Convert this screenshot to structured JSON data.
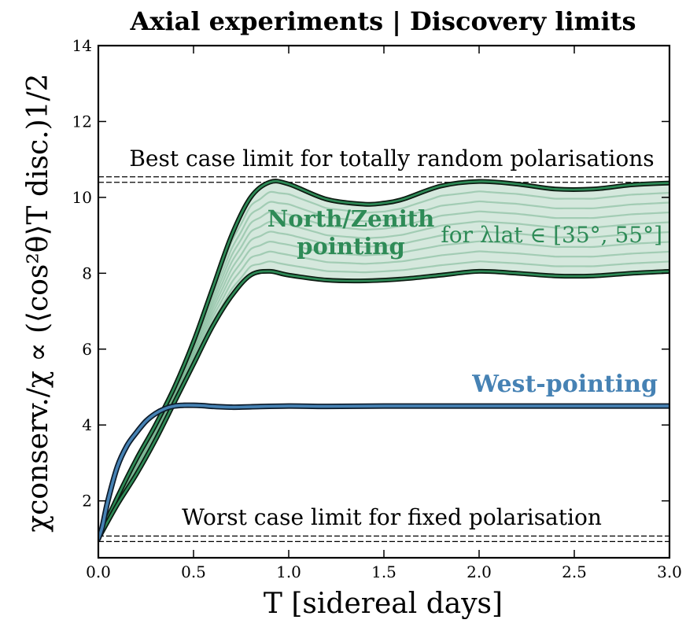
{
  "chart_data": {
    "type": "line",
    "title": "Axial experiments | Discovery limits",
    "xlabel": "T [sidereal days]",
    "ylabel": "χconserv./χ ∝ (⟨cos²θ⟩T disc.)1/2",
    "xlim": [
      0.0,
      3.0
    ],
    "ylim": [
      0.5,
      14
    ],
    "xticks": [
      "0.0",
      "0.5",
      "1.0",
      "1.5",
      "2.0",
      "2.5",
      "3.0"
    ],
    "yticks": [
      "2",
      "4",
      "6",
      "8",
      "10",
      "12",
      "14"
    ],
    "grid": false,
    "reference_lines": [
      {
        "label": "Best case limit for totally random polarisations",
        "y": 10.47
      },
      {
        "label": "Worst case limit for fixed polarisation",
        "y": 1.0
      }
    ],
    "band": {
      "label": "North/Zenith pointing",
      "sublabel": "for λlat ∈ [35°, 55°]",
      "color": "#2e8b57",
      "upper": {
        "x": [
          0.0,
          0.1,
          0.2,
          0.3,
          0.4,
          0.5,
          0.6,
          0.7,
          0.8,
          0.9,
          1.0,
          1.2,
          1.4,
          1.5,
          1.6,
          1.8,
          2.0,
          2.2,
          2.4,
          2.6,
          2.8,
          3.0
        ],
        "y": [
          1.0,
          2.1,
          3.1,
          4.0,
          5.0,
          6.2,
          7.6,
          9.0,
          10.0,
          10.4,
          10.35,
          9.95,
          9.82,
          9.85,
          9.95,
          10.3,
          10.42,
          10.35,
          10.22,
          10.22,
          10.33,
          10.38
        ]
      },
      "lower": {
        "x": [
          0.0,
          0.1,
          0.2,
          0.3,
          0.4,
          0.5,
          0.6,
          0.7,
          0.8,
          0.9,
          1.0,
          1.2,
          1.4,
          1.6,
          1.8,
          2.0,
          2.2,
          2.4,
          2.6,
          2.8,
          3.0
        ],
        "y": [
          1.0,
          1.9,
          2.7,
          3.6,
          4.6,
          5.6,
          6.6,
          7.4,
          7.95,
          8.05,
          7.95,
          7.82,
          7.8,
          7.85,
          7.95,
          8.05,
          8.0,
          7.93,
          7.93,
          8.0,
          8.05
        ]
      },
      "inner_lines": 8
    },
    "series": [
      {
        "name": "West-pointing",
        "color": "#4682b4",
        "x": [
          0.0,
          0.02,
          0.05,
          0.1,
          0.15,
          0.2,
          0.25,
          0.3,
          0.35,
          0.4,
          0.45,
          0.5,
          0.55,
          0.6,
          0.7,
          0.8,
          1.0,
          1.2,
          1.5,
          2.0,
          2.5,
          3.0
        ],
        "y": [
          1.0,
          1.3,
          2.0,
          2.9,
          3.45,
          3.8,
          4.1,
          4.3,
          4.43,
          4.5,
          4.52,
          4.52,
          4.51,
          4.49,
          4.47,
          4.48,
          4.5,
          4.49,
          4.5,
          4.5,
          4.5,
          4.5
        ]
      }
    ]
  }
}
